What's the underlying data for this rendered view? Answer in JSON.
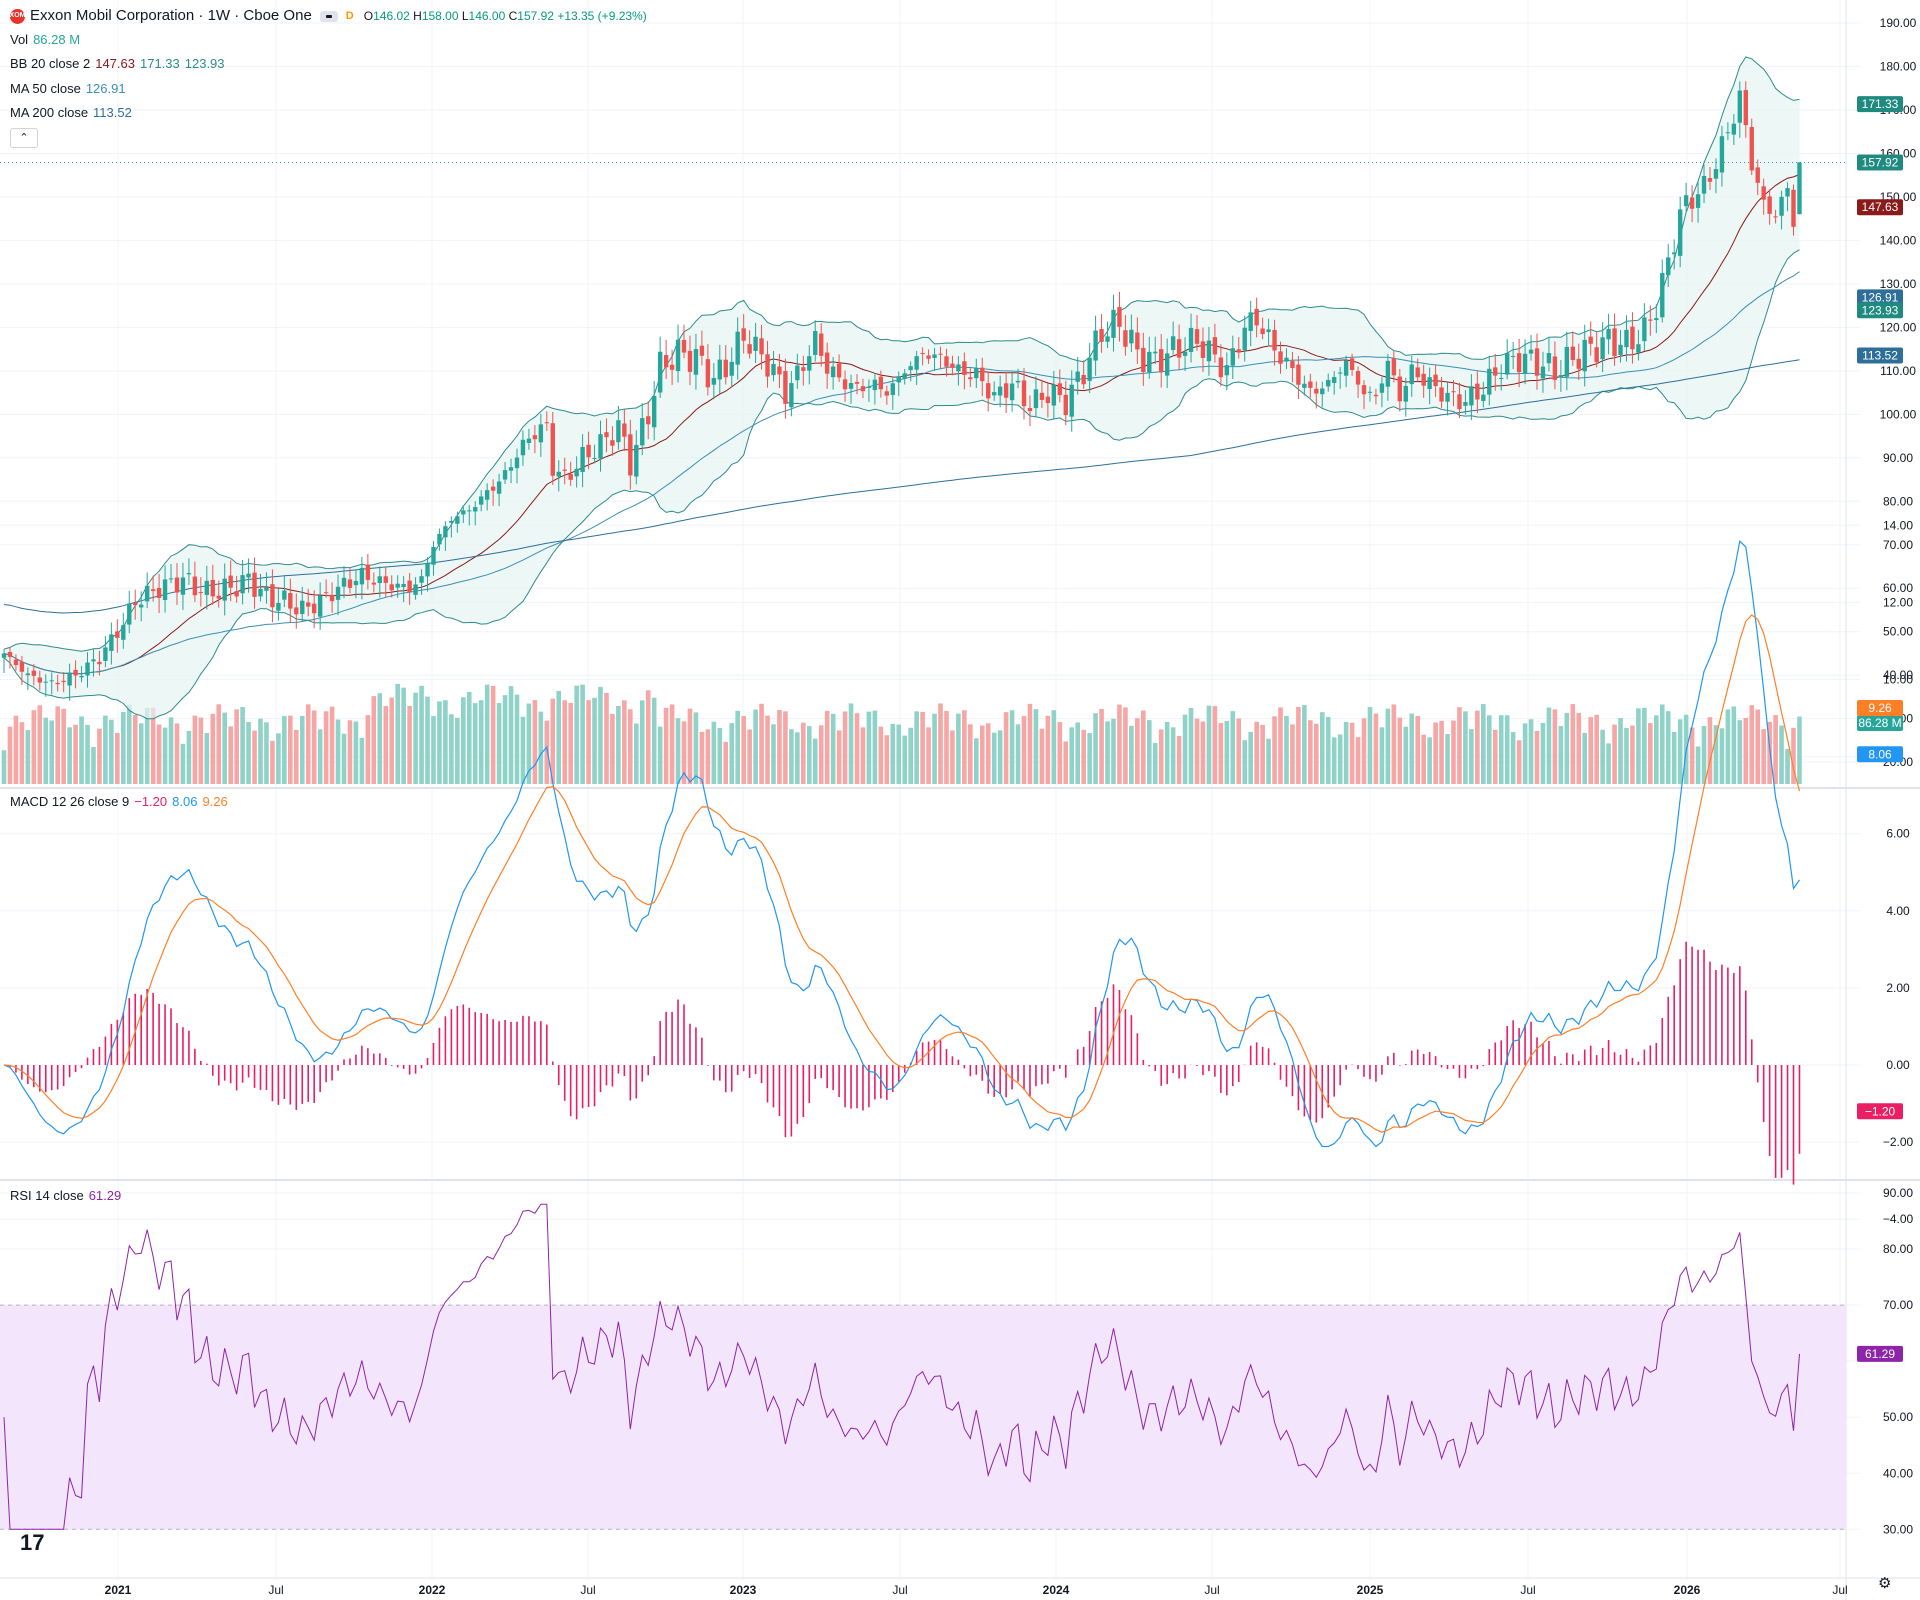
{
  "header": {
    "logo": "XOM",
    "title": "Exxon Mobil Corporation · 1W · Cboe One",
    "eye_icon": "eye-icon",
    "interval_icon": "D",
    "o_label": "O",
    "o_value": "146.02",
    "h_label": "H",
    "h_value": "158.00",
    "l_label": "L",
    "l_value": "146.00",
    "c_label": "C",
    "c_value": "157.92",
    "change": "+13.35 (+9.23%)"
  },
  "legends": {
    "vol_name": "Vol",
    "vol_value": "86.28 M",
    "bb_name": "BB 20 close 2",
    "bb_mid": "147.63",
    "bb_upper": "171.33",
    "bb_lower": "123.93",
    "ma50_name": "MA 50 close",
    "ma50_value": "126.91",
    "ma200_name": "MA 200 close",
    "ma200_value": "113.52",
    "macd_name": "MACD 12 26 close 9",
    "macd_hist": "−1.20",
    "macd_line": "8.06",
    "macd_signal": "9.26",
    "rsi_name": "RSI 14 close",
    "rsi_value": "61.29"
  },
  "colors": {
    "up": "#26a69a",
    "down": "#ef5350",
    "vol_up": "#8fd2c8",
    "vol_down": "#f6a6a4",
    "bb_band": "#2e8b8b",
    "bb_fill": "#e6f4f1",
    "bb_mid": "#8b1a1a",
    "ma50": "#3a8fb5",
    "ma200": "#2e6f99",
    "macd": "#2196f3",
    "signal": "#ff7f27",
    "hist": "#e91e63",
    "rsi": "#8e24aa",
    "rsi_band": "#f3e5fc",
    "price_line": "#26a69a"
  },
  "price_scale": [
    "190.00",
    "180.00",
    "170.00",
    "160.00",
    "150.00",
    "140.00",
    "130.00",
    "120.00",
    "110.00",
    "100.00",
    "90.00",
    "80.00",
    "70.00",
    "60.00",
    "50.00",
    "40.00",
    "30.00",
    "20.00"
  ],
  "macd_scale": [
    "14.00",
    "12.00",
    "10.00",
    "6.00",
    "4.00",
    "2.00",
    "0.00",
    "−2.00",
    "−4.00"
  ],
  "rsi_scale": [
    "90.00",
    "80.00",
    "70.00",
    "50.00",
    "40.00",
    "30.00"
  ],
  "badges": {
    "bb_upper": "171.33",
    "close": "157.92",
    "bb_mid": "147.63",
    "ma50": "126.91",
    "bb_lower": "123.93",
    "ma200": "113.52",
    "vol": "86.28 M",
    "macd_signal": "9.26",
    "macd_line": "8.06",
    "macd_hist": "−1.20",
    "rsi": "61.29"
  },
  "x_axis": [
    "2021",
    "Jul",
    "2022",
    "Jul",
    "2023",
    "Jul",
    "2024",
    "Jul",
    "2025",
    "Jul",
    "2026",
    "Jul"
  ],
  "tv_logo": "17",
  "chart_data": {
    "type": "candlestick",
    "interval": "1W",
    "close_anchors": [
      [
        0,
        45
      ],
      [
        4,
        40
      ],
      [
        8,
        38
      ],
      [
        12,
        40
      ],
      [
        16,
        44
      ],
      [
        20,
        52
      ],
      [
        22,
        57
      ],
      [
        26,
        60
      ],
      [
        30,
        62
      ],
      [
        34,
        59
      ],
      [
        38,
        60
      ],
      [
        41,
        62
      ],
      [
        44,
        58
      ],
      [
        47,
        57
      ],
      [
        50,
        55
      ],
      [
        53,
        57
      ],
      [
        56,
        60
      ],
      [
        60,
        63
      ],
      [
        64,
        61
      ],
      [
        68,
        60
      ],
      [
        70,
        62
      ],
      [
        72,
        70
      ],
      [
        75,
        76
      ],
      [
        78,
        78
      ],
      [
        81,
        82
      ],
      [
        84,
        86
      ],
      [
        86,
        91
      ],
      [
        89,
        96
      ],
      [
        91,
        97
      ],
      [
        92,
        88
      ],
      [
        94,
        85
      ],
      [
        97,
        90
      ],
      [
        100,
        93
      ],
      [
        103,
        97
      ],
      [
        105,
        89
      ],
      [
        108,
        100
      ],
      [
        110,
        111
      ],
      [
        113,
        114
      ],
      [
        116,
        113
      ],
      [
        119,
        108
      ],
      [
        121,
        111
      ],
      [
        124,
        118
      ],
      [
        126,
        115
      ],
      [
        129,
        110
      ],
      [
        131,
        105
      ],
      [
        133,
        109
      ],
      [
        136,
        117
      ],
      [
        138,
        111
      ],
      [
        140,
        108
      ],
      [
        143,
        106
      ],
      [
        146,
        107
      ],
      [
        148,
        105
      ],
      [
        151,
        110
      ],
      [
        154,
        114
      ],
      [
        157,
        113
      ],
      [
        160,
        110
      ],
      [
        163,
        109
      ],
      [
        166,
        104
      ],
      [
        169,
        107
      ],
      [
        172,
        102
      ],
      [
        175,
        105
      ],
      [
        178,
        103
      ],
      [
        181,
        110
      ],
      [
        184,
        119
      ],
      [
        187,
        121
      ],
      [
        190,
        114
      ],
      [
        193,
        112
      ],
      [
        195,
        114
      ],
      [
        198,
        116
      ],
      [
        200,
        117
      ],
      [
        203,
        113
      ],
      [
        205,
        110
      ],
      [
        208,
        120
      ],
      [
        210,
        122
      ],
      [
        213,
        115
      ],
      [
        216,
        110
      ],
      [
        219,
        105
      ],
      [
        222,
        107
      ],
      [
        225,
        112
      ],
      [
        228,
        105
      ],
      [
        230,
        104
      ],
      [
        232,
        112
      ],
      [
        234,
        104
      ],
      [
        236,
        110
      ],
      [
        239,
        107
      ],
      [
        242,
        104
      ],
      [
        245,
        103
      ],
      [
        248,
        106
      ],
      [
        251,
        111
      ],
      [
        254,
        113
      ],
      [
        257,
        112
      ],
      [
        260,
        110
      ],
      [
        263,
        113
      ],
      [
        266,
        115
      ],
      [
        269,
        117
      ],
      [
        272,
        116
      ],
      [
        275,
        119
      ],
      [
        277,
        125
      ],
      [
        279,
        135
      ],
      [
        281,
        146
      ],
      [
        283,
        150
      ],
      [
        285,
        152
      ],
      [
        287,
        158
      ],
      [
        289,
        165
      ],
      [
        291,
        173
      ],
      [
        293,
        158
      ],
      [
        295,
        148
      ],
      [
        297,
        146
      ],
      [
        299,
        152
      ],
      [
        300,
        144
      ],
      [
        301,
        157.92
      ]
    ],
    "volume_range_m": [
      20,
      60
    ],
    "bb_upper_last": 171.33,
    "bb_mid_last": 147.63,
    "bb_lower_last": 123.93,
    "ma50_last": 126.91,
    "ma200_last": 113.52,
    "macd_last": 8.06,
    "signal_last": 9.26,
    "hist_last": -1.2,
    "rsi_last": 61.29,
    "rsi_band": [
      30,
      70
    ],
    "ylim_price": [
      15,
      193
    ],
    "ylim_macd": [
      -5,
      14.5
    ],
    "ylim_rsi": [
      27,
      92
    ]
  }
}
